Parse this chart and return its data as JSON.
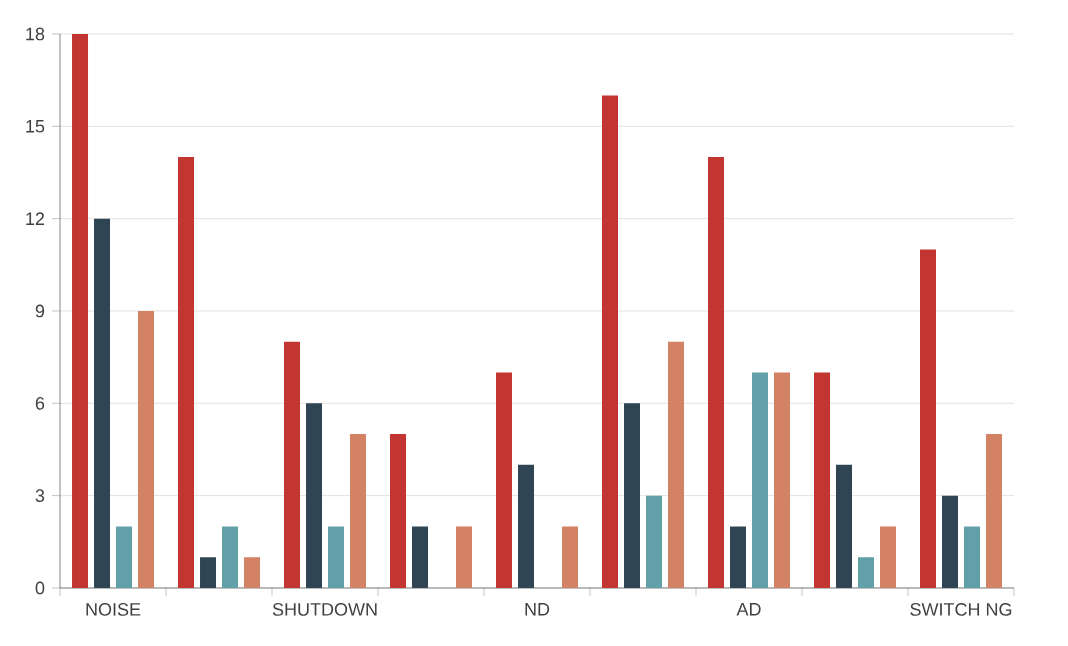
{
  "chart_data": {
    "type": "bar",
    "categories": [
      "NOISE",
      null,
      "SHUTDOWN",
      null,
      "ND",
      null,
      "AD",
      null,
      "SWITCH NG"
    ],
    "series": [
      {
        "color": "#c23531",
        "values": [
          18,
          14,
          8,
          5,
          7,
          16,
          14,
          7,
          11
        ]
      },
      {
        "color": "#2f4554",
        "values": [
          12,
          1,
          6,
          2,
          4,
          6,
          2,
          4,
          3
        ]
      },
      {
        "color": "#61a0a8",
        "values": [
          2,
          2,
          2,
          0,
          0,
          3,
          7,
          1,
          2
        ]
      },
      {
        "color": "#d48265",
        "values": [
          9,
          1,
          5,
          2,
          2,
          8,
          7,
          2,
          5
        ]
      }
    ],
    "ylim": [
      0,
      18
    ],
    "yticks": [
      0,
      3,
      6,
      9,
      12,
      15,
      18
    ],
    "grid": "y"
  }
}
